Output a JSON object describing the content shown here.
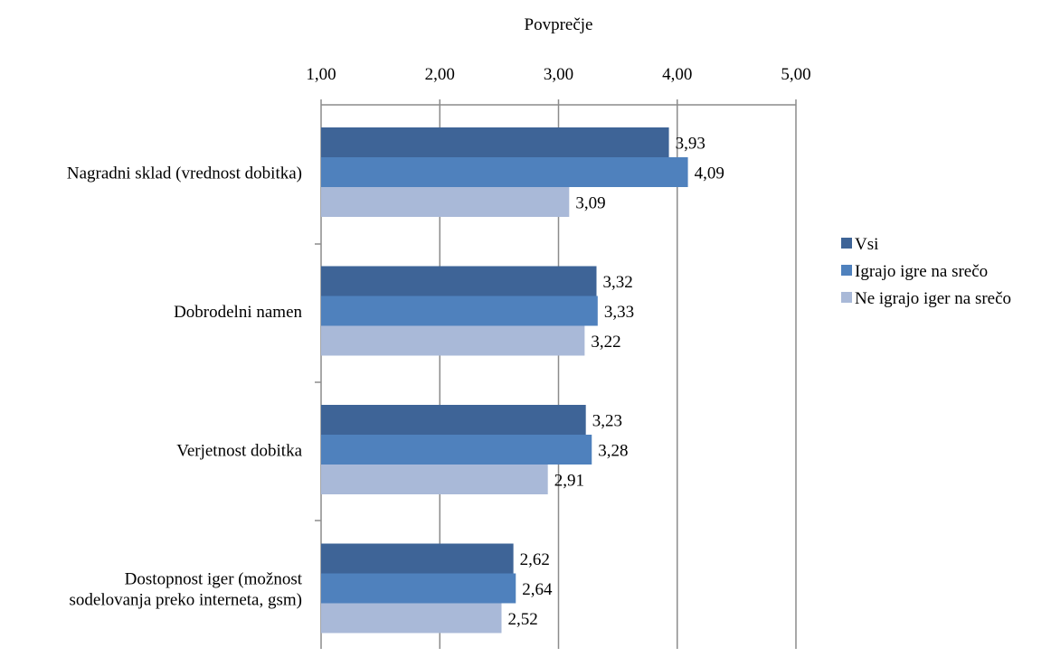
{
  "chart_data": {
    "type": "bar",
    "orientation": "horizontal",
    "title": "",
    "xlabel": "Povprečje",
    "ylabel": "",
    "xlim": [
      1,
      5
    ],
    "x_ticks": [
      1,
      2,
      3,
      4,
      5
    ],
    "x_tick_labels": [
      "1,00",
      "2,00",
      "3,00",
      "4,00",
      "5,00"
    ],
    "x_axis_position": "top",
    "grid": true,
    "legend_position": "right",
    "categories": [
      [
        "Nagradni sklad (vrednost dobitka)"
      ],
      [
        "Dobrodelni namen"
      ],
      [
        "Verjetnost dobitka"
      ],
      [
        "Dostopnost iger (možnost",
        "sodelovanja preko interneta, gsm)"
      ]
    ],
    "series": [
      {
        "name": "Vsi",
        "color": "#3E6497",
        "values": [
          3.93,
          3.32,
          3.23,
          2.62
        ],
        "labels": [
          "3,93",
          "3,32",
          "3,23",
          "2,62"
        ]
      },
      {
        "name": "Igrajo igre na srečo",
        "color": "#4F81BD",
        "values": [
          4.09,
          3.33,
          3.28,
          2.64
        ],
        "labels": [
          "4,09",
          "3,33",
          "3,28",
          "2,64"
        ]
      },
      {
        "name": "Ne igrajo iger na srečo",
        "color": "#A9B9D8",
        "values": [
          3.09,
          3.22,
          2.91,
          2.52
        ],
        "labels": [
          "3,09",
          "3,22",
          "2,91",
          "2,52"
        ]
      }
    ]
  }
}
